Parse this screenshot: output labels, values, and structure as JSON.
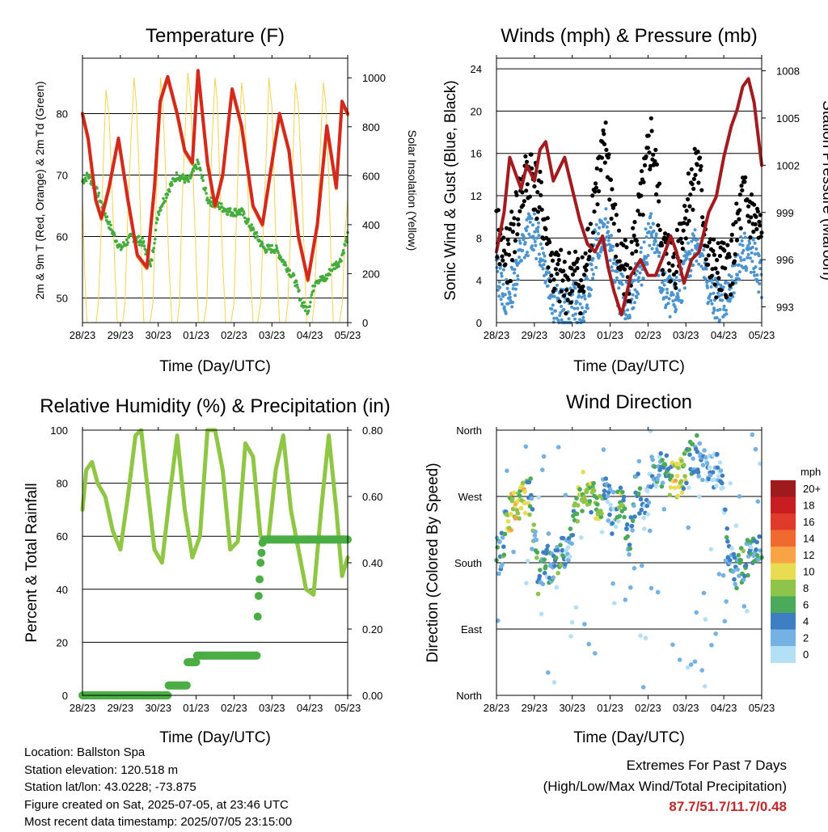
{
  "footer": {
    "location": "Location: Ballston Spa",
    "elevation": "Station elevation: 120.518 m",
    "latlon": "Station lat/lon: 43.0228; -73.875",
    "created": "Figure created on Sat, 2025-07-05, at 23:46 UTC",
    "latest": "Most recent data timestamp: 2025/07/05 23:15:00"
  },
  "extremes": {
    "title": "Extremes For Past 7 Days",
    "subtitle": "(High/Low/Max Wind/Total Precipitation)",
    "values": "87.7/51.7/11.7/0.48",
    "color": "#c0282a"
  },
  "chart_data": [
    {
      "type": "line",
      "title": "Temperature (F)",
      "xlabel": "Time (Day/UTC)",
      "ylabel": "2m & 9m T (Red, Orange) & 2m Td (Green)",
      "y2label": "Solar Insolation (Yellow)",
      "x_ticks": [
        "28/23",
        "29/23",
        "30/23",
        "01/23",
        "02/23",
        "03/23",
        "04/23",
        "05/23"
      ],
      "xlim": [
        0,
        7
      ],
      "ylim": [
        46,
        89
      ],
      "y_ticks": [
        50,
        60,
        70,
        80
      ],
      "y2lim": [
        0,
        1080
      ],
      "y2_ticks": [
        0,
        200,
        400,
        600,
        800,
        1000
      ],
      "grid": true,
      "series": [
        {
          "key": "temp",
          "color": "#d42a1e",
          "x": [
            0,
            0.15,
            0.35,
            0.5,
            0.7,
            0.95,
            1.2,
            1.45,
            1.7,
            1.9,
            2.05,
            2.25,
            2.5,
            2.7,
            2.9,
            3.05,
            3.3,
            3.5,
            3.7,
            3.95,
            4.2,
            4.5,
            4.75,
            4.95,
            5.2,
            5.45,
            5.7,
            5.95,
            6.2,
            6.45,
            6.7,
            6.85,
            7.0
          ],
          "y": [
            80,
            76,
            66,
            63,
            68,
            76,
            66,
            57,
            55,
            68,
            82,
            86,
            80,
            74,
            72,
            87,
            72,
            65,
            70,
            84,
            78,
            65,
            62,
            70,
            80,
            74,
            60,
            53,
            62,
            78,
            68,
            82,
            80
          ]
        },
        {
          "key": "dewpoint",
          "color": "#44ac3c",
          "x": [
            0,
            0.15,
            0.4,
            0.7,
            1.0,
            1.3,
            1.6,
            1.8,
            2.0,
            2.3,
            2.5,
            2.8,
            3.05,
            3.3,
            3.6,
            3.9,
            4.2,
            4.5,
            4.8,
            5.1,
            5.3,
            5.6,
            5.8,
            5.95,
            6.15,
            6.4,
            6.6,
            6.8,
            7.0
          ],
          "y": [
            69,
            70,
            67,
            62,
            58,
            60,
            59,
            55,
            64,
            68,
            70,
            69,
            72,
            66,
            65,
            64,
            64,
            61,
            58,
            58,
            56,
            53,
            49,
            48,
            53,
            53,
            55,
            56,
            60
          ]
        },
        {
          "key": "solar",
          "color": "#f5d24b",
          "x": [
            0,
            0.06,
            0.12,
            0.2,
            0.28,
            0.36,
            0.42,
            0.5,
            0.56,
            0.62,
            0.7,
            0.78,
            0.86,
            0.92,
            1.0,
            1.06,
            1.12,
            1.2,
            1.28,
            1.36,
            1.42,
            1.5,
            1.56,
            1.62,
            1.7,
            1.78,
            1.86,
            1.92,
            2.0,
            2.06,
            2.12,
            2.2,
            2.28,
            2.36,
            2.42,
            2.5,
            2.56,
            2.62,
            2.7,
            2.78,
            2.86,
            2.92,
            3.0,
            3.06,
            3.12,
            3.2,
            3.28,
            3.36,
            3.42,
            3.5,
            3.56,
            3.62,
            3.7,
            3.78,
            3.86,
            3.92,
            4.0,
            4.06,
            4.12,
            4.2,
            4.28,
            4.36,
            4.42,
            4.5,
            4.56,
            4.62,
            4.7,
            4.78,
            4.86,
            4.92,
            5.0,
            5.06,
            5.12,
            5.2,
            5.28,
            5.36,
            5.42,
            5.5,
            5.56,
            5.62,
            5.7,
            5.78,
            5.86,
            5.92,
            6.0,
            6.06,
            6.12,
            6.2,
            6.28,
            6.36,
            6.42,
            6.5,
            6.56,
            6.62,
            6.7,
            6.78,
            6.86,
            6.92,
            7.0
          ],
          "y": [
            500,
            200,
            0,
            0,
            0,
            0,
            80,
            400,
            700,
            950,
            850,
            550,
            200,
            0,
            0,
            0,
            80,
            450,
            750,
            1000,
            900,
            600,
            250,
            0,
            0,
            0,
            80,
            400,
            700,
            1000,
            900,
            600,
            250,
            0,
            0,
            0,
            80,
            450,
            750,
            1020,
            900,
            600,
            250,
            0,
            0,
            0,
            80,
            450,
            750,
            1000,
            900,
            600,
            250,
            0,
            0,
            0,
            80,
            400,
            700,
            980,
            880,
            580,
            250,
            0,
            0,
            0,
            80,
            420,
            720,
            1000,
            880,
            580,
            250,
            0,
            0,
            0,
            80,
            400,
            700,
            980,
            880,
            600,
            250,
            0,
            0,
            0,
            80,
            420,
            720,
            980,
            900,
            600,
            250,
            0,
            0,
            0,
            80,
            350,
            500
          ]
        }
      ]
    },
    {
      "type": "scatter",
      "title": "Winds (mph) & Pressure (mb)",
      "xlabel": "Time (Day/UTC)",
      "ylabel": "Sonic Wind & Gust (Blue, Black)",
      "y2label": "Station Pressure (Maroon)",
      "x_ticks": [
        "28/23",
        "29/23",
        "30/23",
        "01/23",
        "02/23",
        "03/23",
        "04/23",
        "05/23"
      ],
      "xlim": [
        0,
        7
      ],
      "ylim": [
        0,
        25
      ],
      "y_ticks": [
        0,
        4,
        8,
        12,
        16,
        20,
        24
      ],
      "y2lim": [
        992.0,
        1008.8
      ],
      "y2_ticks": [
        993,
        996,
        999,
        1002,
        1005,
        1008
      ],
      "grid": true,
      "series": [
        {
          "key": "wind",
          "color": "#4b94d0",
          "x": [
            0,
            0.3,
            0.6,
            0.9,
            1.2,
            1.5,
            1.8,
            2.0,
            2.3,
            2.6,
            2.9,
            3.2,
            3.5,
            3.8,
            4.1,
            4.4,
            4.7,
            5.0,
            5.3,
            5.6,
            5.9,
            6.2,
            6.5,
            6.8,
            7.0
          ],
          "y": [
            5,
            2,
            6,
            9,
            7,
            2,
            1,
            2,
            1,
            7,
            9,
            3,
            2,
            5,
            9,
            3,
            2,
            5,
            8,
            3,
            2,
            3,
            7,
            6,
            4
          ]
        },
        {
          "key": "gust",
          "color": "#000000",
          "x": [
            0,
            0.3,
            0.6,
            0.9,
            1.2,
            1.5,
            1.8,
            2.0,
            2.3,
            2.6,
            2.9,
            3.2,
            3.5,
            3.8,
            4.1,
            4.4,
            4.7,
            5.0,
            5.3,
            5.6,
            5.9,
            6.2,
            6.5,
            6.8,
            7.0
          ],
          "y": [
            8,
            5,
            11,
            14,
            10,
            4,
            3,
            4,
            3,
            12,
            16,
            6,
            4,
            10,
            17,
            6,
            5,
            10,
            15,
            5,
            4,
            5,
            11,
            9,
            7
          ]
        },
        {
          "key": "pressure",
          "color": "#a31b1e",
          "x": [
            0,
            0.2,
            0.35,
            0.5,
            0.65,
            0.8,
            1.0,
            1.15,
            1.3,
            1.5,
            1.8,
            2.0,
            2.2,
            2.4,
            2.6,
            2.8,
            2.95,
            3.1,
            3.3,
            3.55,
            3.8,
            4.0,
            4.2,
            4.45,
            4.6,
            4.75,
            4.95,
            5.15,
            5.35,
            5.6,
            5.8,
            6.0,
            6.2,
            6.35,
            6.5,
            6.65,
            6.8,
            7.0
          ],
          "y": [
            996.5,
            999.0,
            1002.5,
            1001.5,
            1000.5,
            1002.0,
            1001.0,
            1003.0,
            1003.5,
            1001.0,
            1002.5,
            1000.5,
            998.5,
            997.0,
            996.5,
            997.5,
            995.5,
            994.0,
            992.5,
            995.0,
            996.0,
            995.0,
            995.0,
            996.5,
            997.5,
            996.5,
            994.5,
            996.0,
            996.5,
            999.0,
            1000.0,
            1002.5,
            1004.5,
            1005.5,
            1007.0,
            1007.5,
            1006.0,
            1002.0
          ]
        }
      ]
    },
    {
      "type": "line",
      "title": "Relative Humidity (%) & Precipitation (in)",
      "xlabel": "Time (Day/UTC)",
      "ylabel": "Percent & Total Rainfall",
      "x_ticks": [
        "28/23",
        "29/23",
        "30/23",
        "01/23",
        "02/23",
        "03/23",
        "04/23",
        "05/23"
      ],
      "xlim": [
        0,
        7
      ],
      "ylim": [
        0,
        100
      ],
      "y_ticks": [
        0,
        20,
        40,
        60,
        80,
        100
      ],
      "y2lim": [
        0,
        0.8
      ],
      "y2_ticks": [
        "0.00",
        "0.20",
        "0.40",
        "0.60",
        "0.80"
      ],
      "grid": true,
      "series": [
        {
          "key": "rh",
          "color": "#8fc745",
          "x": [
            0,
            0.1,
            0.25,
            0.4,
            0.6,
            0.8,
            1.0,
            1.2,
            1.4,
            1.55,
            1.7,
            1.9,
            2.1,
            2.3,
            2.5,
            2.7,
            2.9,
            3.1,
            3.3,
            3.5,
            3.7,
            3.9,
            4.1,
            4.3,
            4.5,
            4.7,
            4.9,
            5.1,
            5.3,
            5.5,
            5.7,
            5.9,
            6.1,
            6.3,
            6.5,
            6.7,
            6.85,
            7.0
          ],
          "y": [
            70,
            85,
            88,
            80,
            75,
            62,
            55,
            75,
            98,
            100,
            80,
            55,
            50,
            75,
            98,
            70,
            52,
            60,
            100,
            100,
            85,
            55,
            58,
            95,
            90,
            60,
            58,
            85,
            98,
            70,
            55,
            40,
            38,
            70,
            98,
            70,
            45,
            52
          ]
        },
        {
          "key": "precip",
          "color": "#4aae44",
          "x": [
            0,
            2.25,
            2.26,
            2.75,
            2.76,
            3.0,
            3.01,
            4.6,
            4.61,
            4.65,
            4.7,
            4.75,
            4.8,
            7.0
          ],
          "y": [
            0,
            0,
            0.03,
            0.03,
            0.1,
            0.1,
            0.12,
            0.12,
            0.2,
            0.3,
            0.4,
            0.46,
            0.47,
            0.47
          ]
        }
      ]
    },
    {
      "type": "scatter",
      "title": "Wind Direction",
      "xlabel": "Time (Day/UTC)",
      "ylabel": "Direction (Colored By Speed)",
      "x_ticks": [
        "28/23",
        "29/23",
        "30/23",
        "01/23",
        "02/23",
        "03/23",
        "04/23",
        "05/23"
      ],
      "xlim": [
        0,
        7
      ],
      "y_ticks": [
        "North",
        "East",
        "South",
        "West",
        "North"
      ],
      "ylim": [
        0,
        360
      ],
      "grid": true,
      "legend": {
        "position": "right",
        "title": "mph",
        "labels": [
          "20+",
          "18",
          "16",
          "14",
          "12",
          "10",
          "8",
          "6",
          "4",
          "2",
          "0"
        ],
        "colors": [
          "#9e1a1c",
          "#c81e22",
          "#e03a2a",
          "#f06a30",
          "#f9a444",
          "#e8dc50",
          "#8ec44a",
          "#4aaa5a",
          "#3e7fc4",
          "#74b2e4",
          "#b4e0f6"
        ]
      },
      "series": [
        {
          "key": "dir",
          "x": [
            0.1,
            0.3,
            0.5,
            0.7,
            0.9,
            1.1,
            1.3,
            1.5,
            1.7,
            1.9,
            2.1,
            2.3,
            2.5,
            2.7,
            2.9,
            3.1,
            3.3,
            3.5,
            3.7,
            3.9,
            4.1,
            4.3,
            4.5,
            4.7,
            4.9,
            5.1,
            5.3,
            5.5,
            5.7,
            5.9,
            6.1,
            6.3,
            6.5,
            6.7,
            6.9
          ],
          "y": [
            190,
            240,
            260,
            265,
            270,
            160,
            180,
            175,
            190,
            200,
            250,
            280,
            270,
            260,
            280,
            230,
            275,
            200,
            290,
            240,
            300,
            310,
            300,
            290,
            300,
            320,
            330,
            310,
            300,
            310,
            200,
            160,
            180,
            190,
            200
          ],
          "speed": [
            4,
            8,
            10,
            10,
            6,
            6,
            4,
            4,
            6,
            2,
            8,
            10,
            8,
            8,
            4,
            2,
            8,
            4,
            6,
            2,
            4,
            4,
            6,
            10,
            8,
            6,
            4,
            2,
            2,
            2,
            4,
            4,
            6,
            4,
            4
          ]
        }
      ]
    }
  ]
}
